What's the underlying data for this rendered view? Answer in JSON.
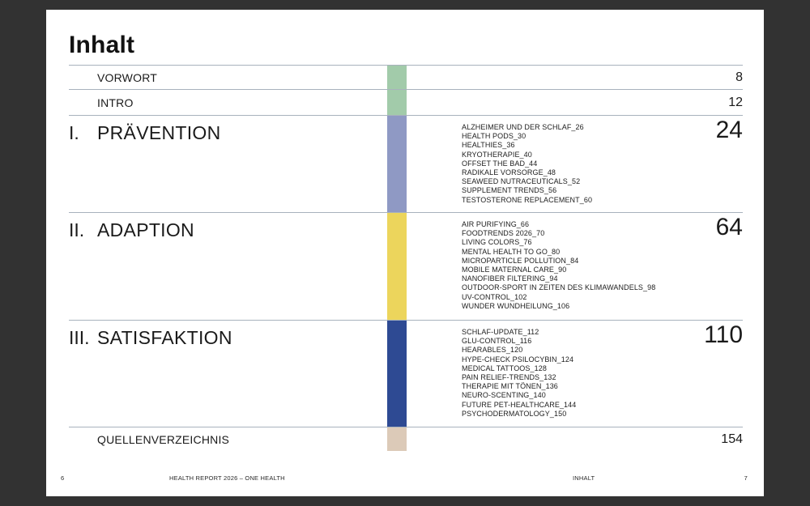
{
  "page": {
    "title": "Inhalt",
    "footer": {
      "left_page_number": "6",
      "left_text": "HEALTH REPORT 2026 – ONE HEALTH",
      "right_text": "INHALT",
      "right_page_number": "7"
    }
  },
  "colors": {
    "background": "#323232",
    "paper": "#ffffff",
    "divider": "#a8b2bd",
    "green": "#a2cbaa",
    "periwinkle": "#8f99c4",
    "yellow": "#ecd55c",
    "navy": "#2e4a93",
    "beige": "#dccab8"
  },
  "toc": {
    "rows": [
      {
        "label": "VORWORT",
        "page": "8",
        "color": "#a2cbaa"
      },
      {
        "label": "INTRO",
        "page": "12",
        "color": "#a2cbaa"
      },
      {
        "numeral": "I.",
        "label": "PRÄVENTION",
        "page": "24",
        "color": "#8f99c4",
        "items": [
          "ALZHEIMER UND DER SCHLAF_26",
          "HEALTH PODS_30",
          "HEALTHIES_36",
          "KRYOTHERAPIE_40",
          "OFFSET THE BAD_44",
          "RADIKALE VORSORGE_48",
          "SEAWEED NUTRACEUTICALS_52",
          "SUPPLEMENT TRENDS_56",
          "TESTOSTERONE REPLACEMENT_60"
        ]
      },
      {
        "numeral": "II.",
        "label": "ADAPTION",
        "page": "64",
        "color": "#ecd55c",
        "items": [
          "AIR PURIFYING_66",
          "FOODTRENDS 2026_70",
          "LIVING COLORS_76",
          "MENTAL HEALTH TO GO_80",
          "MICROPARTICLE POLLUTION_84",
          "MOBILE MATERNAL CARE_90",
          "NANOFIBER FILTERING_94",
          "OUTDOOR-SPORT IN ZEITEN DES KLIMAWANDELS_98",
          "UV-CONTROL_102",
          "WUNDER WUNDHEILUNG_106"
        ]
      },
      {
        "numeral": "III.",
        "label": "SATISFAKTION",
        "page": "110",
        "color": "#2e4a93",
        "items": [
          "SCHLAF-UPDATE_112",
          "GLU-CONTROL_116",
          "HEARABLES_120",
          "HYPE-CHECK PSILOCYBIN_124",
          "MEDICAL TATTOOS_128",
          "PAIN RELIEF-TRENDS_132",
          "THERAPIE MIT TÖNEN_136",
          "NEURO-SCENTING_140",
          "FUTURE PET-HEALTHCARE_144",
          "PSYCHODERMATOLOGY_150"
        ]
      },
      {
        "label": "QUELLENVERZEICHNIS",
        "page": "154",
        "color": "#dccab8"
      }
    ]
  }
}
